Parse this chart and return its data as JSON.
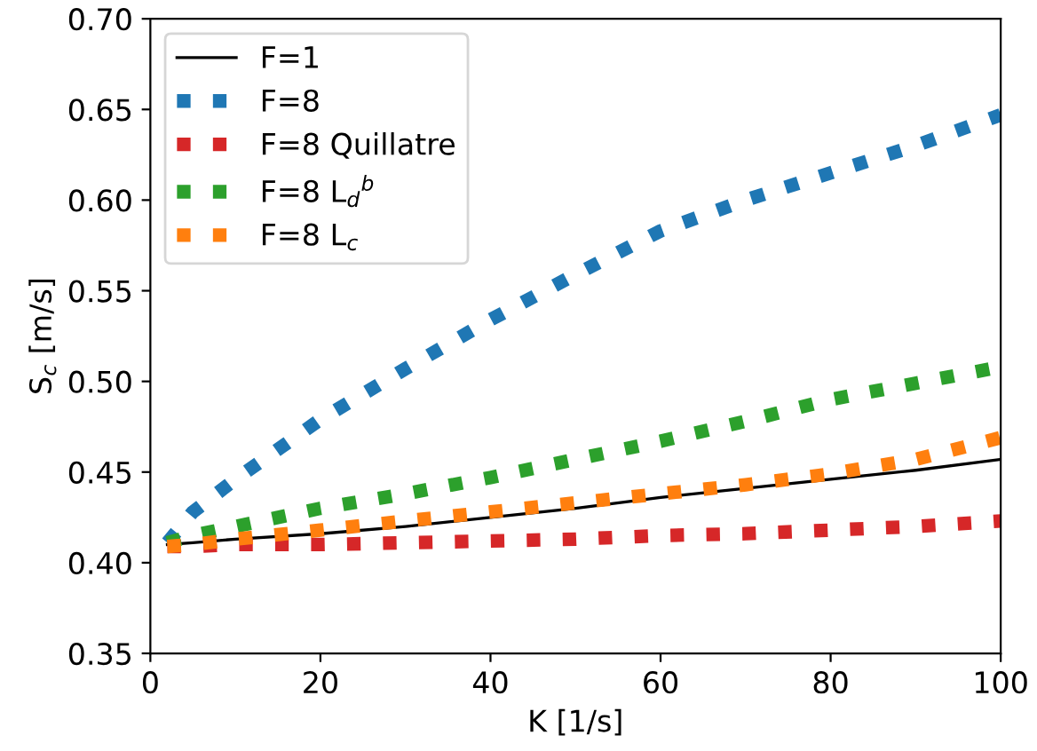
{
  "chart_data": {
    "type": "line",
    "xlabel": "K [1/s]",
    "ylabel": "S$_{c}$ [m/s]",
    "xlim": [
      0,
      100
    ],
    "ylim": [
      0.35,
      0.7
    ],
    "xticks": [
      0,
      20,
      40,
      60,
      80,
      100
    ],
    "yticks": [
      {
        "value": 0.35,
        "label": "0.35"
      },
      {
        "value": 0.4,
        "label": "0.40"
      },
      {
        "value": 0.45,
        "label": "0.45"
      },
      {
        "value": 0.5,
        "label": "0.50"
      },
      {
        "value": 0.55,
        "label": "0.55"
      },
      {
        "value": 0.6,
        "label": "0.60"
      },
      {
        "value": 0.65,
        "label": "0.65"
      },
      {
        "value": 0.7,
        "label": "0.70"
      }
    ],
    "grid": false,
    "legend": "top left",
    "x": [
      2,
      5,
      10,
      20,
      30,
      40,
      50,
      60,
      70,
      80,
      90,
      100
    ],
    "series": [
      {
        "name": "F=1",
        "color": "#000000",
        "line_style": "solid",
        "values": [
          0.41,
          0.411,
          0.413,
          0.416,
          0.42,
          0.425,
          0.43,
          0.436,
          0.441,
          0.446,
          0.451,
          0.457
        ]
      },
      {
        "name": "F=8",
        "color": "#1f77b4",
        "line_style": "dotted",
        "values": [
          0.411,
          0.428,
          0.446,
          0.479,
          0.507,
          0.534,
          0.559,
          0.583,
          0.6,
          0.615,
          0.63,
          0.647
        ]
      },
      {
        "name": "F=8 Quillatre",
        "color": "#d62728",
        "line_style": "dotted",
        "values": [
          0.409,
          0.409,
          0.41,
          0.41,
          0.411,
          0.412,
          0.413,
          0.415,
          0.416,
          0.418,
          0.42,
          0.423
        ]
      },
      {
        "name": "F=8 L$_{d}$$^{b}$",
        "color": "#2ca02c",
        "line_style": "dotted",
        "values": [
          0.411,
          0.415,
          0.42,
          0.43,
          0.438,
          0.447,
          0.457,
          0.467,
          0.478,
          0.49,
          0.499,
          0.508
        ]
      },
      {
        "name": "F=8 L$_{c}$",
        "color": "#ff7f0e",
        "line_style": "dotted",
        "values": [
          0.409,
          0.41,
          0.413,
          0.418,
          0.423,
          0.428,
          0.433,
          0.438,
          0.443,
          0.449,
          0.457,
          0.469
        ]
      }
    ]
  }
}
